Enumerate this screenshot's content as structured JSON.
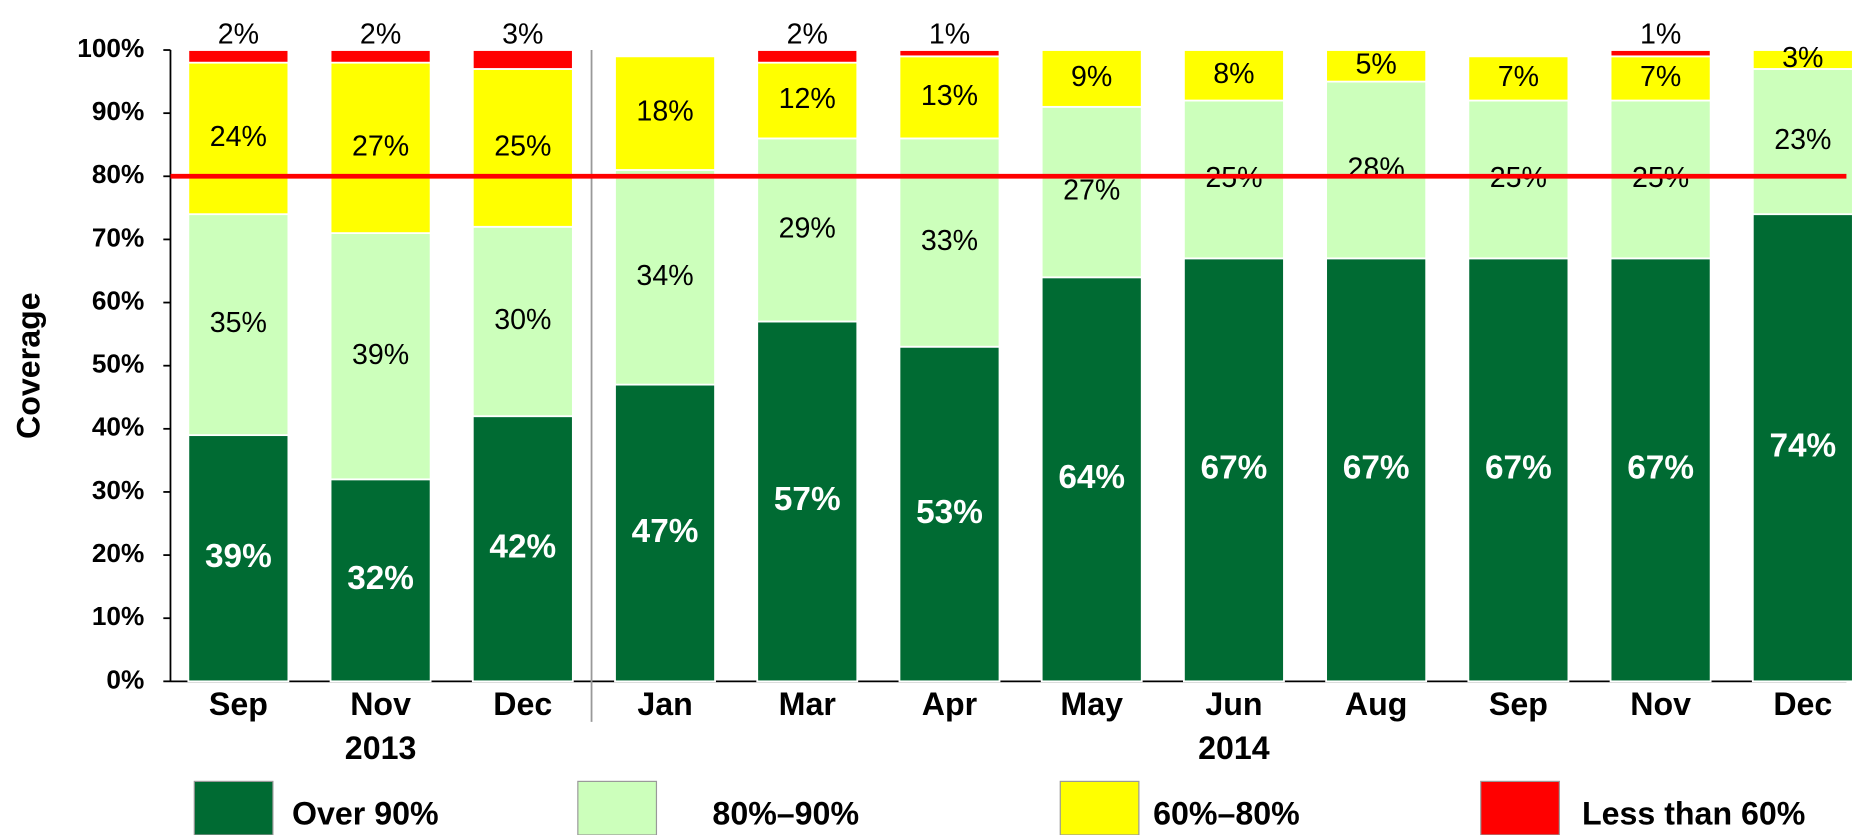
{
  "chart_data": {
    "type": "stacked_bar",
    "y_label": "Coverage",
    "categories": [
      "Sep",
      "Nov",
      "Dec",
      "Jan",
      "Mar",
      "Apr",
      "May",
      "Jun",
      "Aug",
      "Sep",
      "Nov",
      "Dec"
    ],
    "groups": [
      {
        "label": "2013",
        "count": 3
      },
      {
        "label": "2014",
        "count": 9
      }
    ],
    "series": [
      {
        "name": "Over 90%",
        "color": "#006b33",
        "values": [
          39,
          32,
          42,
          47,
          57,
          53,
          64,
          67,
          67,
          67,
          67,
          74
        ],
        "value_labels": [
          "39%",
          "32%",
          "42%",
          "47%",
          "57%",
          "53%",
          "64%",
          "67%",
          "67%",
          "67%",
          "67%",
          "74%"
        ]
      },
      {
        "name": "80%–90%",
        "color": "#ccffbb",
        "values": [
          35,
          39,
          30,
          34,
          29,
          33,
          27,
          25,
          28,
          25,
          25,
          23
        ],
        "value_labels": [
          "35%",
          "39%",
          "30%",
          "34%",
          "29%",
          "33%",
          "27%",
          "25%",
          "28%",
          "25%",
          "25%",
          "23%"
        ]
      },
      {
        "name": "60%–80%",
        "color": "#ffff00",
        "values": [
          24,
          27,
          25,
          18,
          12,
          13,
          9,
          8,
          5,
          7,
          7,
          3
        ],
        "value_labels": [
          "24%",
          "27%",
          "25%",
          "18%",
          "12%",
          "13%",
          "9%",
          "8%",
          "5%",
          "7%",
          "7%",
          "3%"
        ]
      },
      {
        "name": "Less than 60%",
        "color": "#ff0000",
        "values": [
          2,
          2,
          3,
          null,
          2,
          1,
          null,
          null,
          null,
          null,
          1,
          null
        ],
        "value_labels": [
          "2%",
          "2%",
          "3%",
          null,
          "2%",
          "1%",
          null,
          null,
          null,
          null,
          "1%",
          null
        ]
      }
    ],
    "ylim": [
      0,
      100
    ],
    "yticks": [
      {
        "value": 0,
        "label": "0%"
      },
      {
        "value": 10,
        "label": "10%"
      },
      {
        "value": 20,
        "label": "20%"
      },
      {
        "value": 30,
        "label": "30%"
      },
      {
        "value": 40,
        "label": "40%"
      },
      {
        "value": 50,
        "label": "50%"
      },
      {
        "value": 60,
        "label": "60%"
      },
      {
        "value": 70,
        "label": "70%"
      },
      {
        "value": 80,
        "label": "80%"
      },
      {
        "value": 90,
        "label": "90%"
      },
      {
        "value": 100,
        "label": "100%"
      }
    ],
    "reference_line": {
      "value": 80,
      "color": "#ff0000"
    },
    "grid": false
  }
}
